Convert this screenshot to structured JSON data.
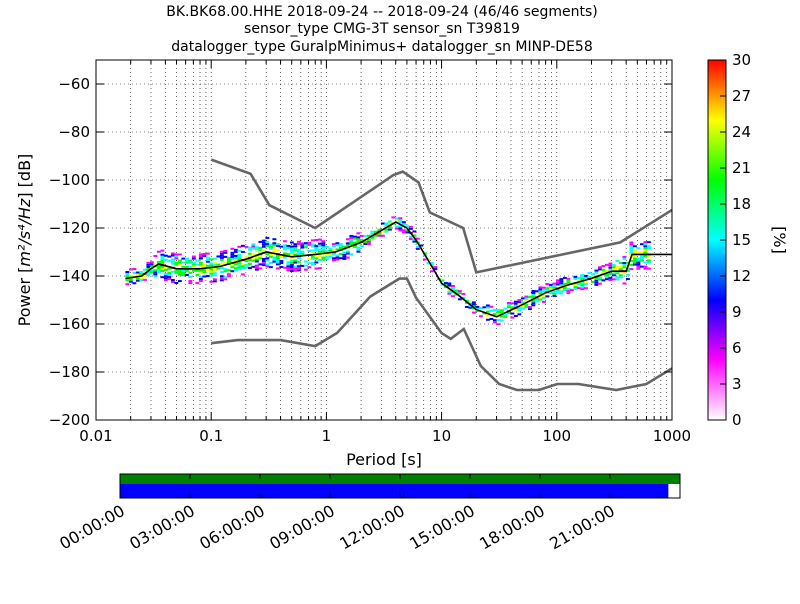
{
  "chart_data": [
    {
      "type": "heatmap",
      "title_lines": [
        "BK.BK68.00.HHE   2018-09-24 -- 2018-09-24  (46/46 segments)",
        "sensor_type CMG-3T sensor_sn T39819",
        "datalogger_type GuralpMinimus+ datalogger_sn MINP-DE58"
      ],
      "xlabel": "Period [s]",
      "ylabel_prefix": "Power [",
      "ylabel_unit": "m²/s⁴/Hz",
      "ylabel_suffix": "] [dB]",
      "x_scale": "log",
      "xlim": [
        0.01,
        1000
      ],
      "ylim": [
        -200,
        -50
      ],
      "x_ticks": [
        0.01,
        0.1,
        1,
        10,
        100,
        1000
      ],
      "x_tick_labels": [
        "0.01",
        "0.1",
        "1",
        "10",
        "100",
        "1000"
      ],
      "y_ticks": [
        -200,
        -180,
        -160,
        -140,
        -120,
        -100,
        -80,
        -60
      ],
      "y_tick_labels": [
        "−200",
        "−180",
        "−160",
        "−140",
        "−120",
        "−100",
        "−80",
        "−60"
      ],
      "grid": true,
      "noise_models": [
        {
          "name": "high",
          "x": [
            0.1,
            0.22,
            0.32,
            0.8,
            3.8,
            4.6,
            6.3,
            7.9,
            15.4,
            20,
            354.8,
            1000
          ],
          "y": [
            -91.5,
            -97.4,
            -110.5,
            -120,
            -98,
            -96.5,
            -101,
            -113.5,
            -120,
            -138.5,
            -126,
            -112.5
          ]
        },
        {
          "name": "low",
          "x": [
            0.1,
            0.17,
            0.4,
            0.8,
            1.24,
            2.4,
            4.3,
            5,
            6,
            10,
            12,
            15.6,
            21.9,
            31.6,
            45,
            70,
            101,
            154,
            328,
            600,
            1000
          ],
          "y": [
            -168,
            -166.7,
            -166.7,
            -169.2,
            -163.7,
            -148.6,
            -141.1,
            -141.1,
            -149,
            -163.8,
            -166.2,
            -162.1,
            -177.5,
            -185,
            -187.5,
            -187.5,
            -185,
            -185,
            -187.5,
            -185,
            -178.5
          ]
        }
      ],
      "mode_line": {
        "x": [
          0.018,
          0.025,
          0.03,
          0.035,
          0.05,
          0.08,
          0.12,
          0.2,
          0.3,
          0.5,
          0.8,
          1.2,
          2,
          3,
          4,
          5,
          6,
          8,
          10,
          14,
          20,
          30,
          50,
          80,
          120,
          200,
          300,
          400,
          450,
          1000
        ],
        "y": [
          -141,
          -140,
          -137,
          -135,
          -137,
          -137,
          -136,
          -133,
          -130,
          -132,
          -131,
          -130,
          -126,
          -121,
          -117.5,
          -120,
          -125,
          -135,
          -143,
          -148,
          -154,
          -157,
          -152,
          -147,
          -144,
          -141,
          -138,
          -138,
          -131,
          -131
        ]
      },
      "colorbar": {
        "label": "[%]",
        "range": [
          0,
          30
        ],
        "ticks": [
          0,
          3,
          6,
          9,
          12,
          15,
          18,
          21,
          24,
          27,
          30
        ],
        "colors": [
          "#ffffff",
          "#ff00ff",
          "#0000ff",
          "#00ffff",
          "#00ff00",
          "#ffff00",
          "#ff0000"
        ]
      },
      "heat_cells_note_colors": [
        "#ff00ff",
        "#0000ff",
        "#00ffff",
        "#00ff00",
        "#ffff00",
        "#ff0000"
      ]
    },
    {
      "type": "timeline",
      "x_range_hours": [
        0,
        24
      ],
      "x_tick_labels": [
        "00:00:00",
        "03:00:00",
        "06:00:00",
        "09:00:00",
        "12:00:00",
        "15:00:00",
        "18:00:00",
        "21:00:00"
      ],
      "data_coverage_hours": [
        [
          0,
          24
        ]
      ],
      "used_coverage_hours": [
        [
          0,
          23.5
        ]
      ],
      "coverage_color": "#008000",
      "used_color": "#0000ff"
    }
  ]
}
